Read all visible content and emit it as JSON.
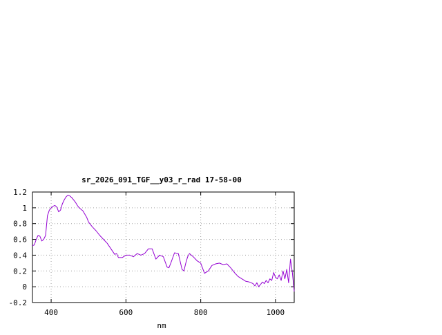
{
  "chart_data": {
    "type": "line",
    "title": "sr_2026_091_TGF__y03_r_rad 17-58-00",
    "xlabel": "nm",
    "ylabel": "",
    "xlim": [
      350,
      1050
    ],
    "ylim": [
      -0.2,
      1.2
    ],
    "x_ticks": [
      400,
      600,
      800,
      1000
    ],
    "y_ticks": [
      -0.2,
      0,
      0.2,
      0.4,
      0.6,
      0.8,
      1,
      1.2
    ],
    "x_tick_labels": [
      "400",
      "600",
      "800",
      "1000"
    ],
    "y_tick_labels": [
      "-0.2",
      "0",
      "0.2",
      "0.4",
      "0.6",
      "0.8",
      "1",
      "1.2"
    ],
    "grid": true,
    "legend": "none",
    "line_color": "#9400d3",
    "series": [
      {
        "x": [
          350,
          355,
          360,
          365,
          370,
          375,
          380,
          385,
          390,
          395,
          400,
          405,
          410,
          415,
          420,
          425,
          430,
          435,
          440,
          445,
          450,
          455,
          460,
          465,
          470,
          475,
          480,
          485,
          490,
          495,
          500,
          505,
          510,
          520,
          530,
          540,
          550,
          560,
          570,
          575,
          580,
          590,
          600,
          610,
          620,
          630,
          640,
          650,
          660,
          670,
          680,
          690,
          700,
          710,
          715,
          720,
          730,
          740,
          750,
          755,
          760,
          765,
          770,
          780,
          790,
          800,
          810,
          820,
          830,
          840,
          850,
          860,
          870,
          880,
          890,
          900,
          910,
          920,
          930,
          940,
          945,
          950,
          955,
          960,
          965,
          970,
          975,
          980,
          985,
          990,
          995,
          1000,
          1005,
          1010,
          1015,
          1020,
          1025,
          1030,
          1035,
          1040,
          1045,
          1050
        ],
        "y": [
          0.52,
          0.53,
          0.6,
          0.65,
          0.64,
          0.58,
          0.6,
          0.65,
          0.9,
          0.97,
          1.0,
          1.02,
          1.03,
          1.01,
          0.95,
          0.97,
          1.05,
          1.1,
          1.14,
          1.16,
          1.15,
          1.13,
          1.1,
          1.07,
          1.03,
          1.0,
          0.98,
          0.96,
          0.92,
          0.88,
          0.82,
          0.79,
          0.76,
          0.71,
          0.65,
          0.6,
          0.55,
          0.48,
          0.41,
          0.42,
          0.37,
          0.37,
          0.4,
          0.4,
          0.38,
          0.42,
          0.4,
          0.42,
          0.48,
          0.48,
          0.35,
          0.4,
          0.38,
          0.25,
          0.24,
          0.3,
          0.43,
          0.42,
          0.22,
          0.2,
          0.3,
          0.38,
          0.42,
          0.38,
          0.33,
          0.3,
          0.17,
          0.2,
          0.27,
          0.29,
          0.3,
          0.28,
          0.29,
          0.24,
          0.18,
          0.13,
          0.1,
          0.07,
          0.06,
          0.04,
          0.01,
          0.05,
          0.0,
          0.03,
          0.06,
          0.04,
          0.08,
          0.05,
          0.1,
          0.08,
          0.18,
          0.12,
          0.1,
          0.15,
          0.08,
          0.2,
          0.1,
          0.22,
          0.05,
          0.35,
          0.18,
          -0.06
        ]
      }
    ]
  }
}
